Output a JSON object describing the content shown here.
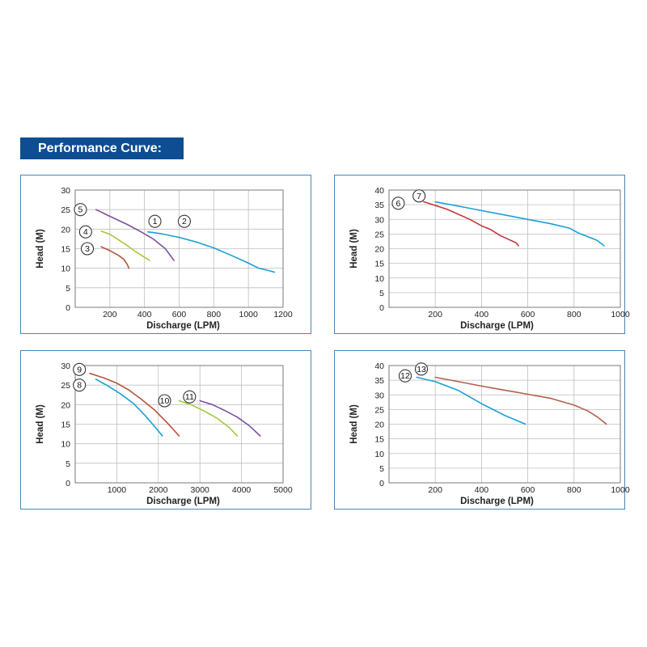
{
  "page": {
    "title": "Performance Curve:"
  },
  "colors": {
    "banner": "#0d4d92",
    "border": "#4a86b8",
    "blue": "#1a9fd6",
    "purple": "#7b52a4",
    "green": "#a8c83c",
    "brown": "#b5533e",
    "red": "#c7353a",
    "brown2": "#b3604b"
  },
  "chart_data": [
    {
      "type": "line",
      "xlabel": "Discharge (LPM)",
      "ylabel": "Head (M)",
      "xlim": [
        0,
        1200
      ],
      "ylim": [
        0,
        30
      ],
      "xticks": [
        200,
        400,
        600,
        800,
        1000,
        1200
      ],
      "yticks": [
        0,
        5,
        10,
        15,
        20,
        25,
        30
      ],
      "grid": true,
      "series": [
        {
          "name": "1",
          "color": "#7b52a4",
          "x": [
            120,
            200,
            300,
            380,
            450,
            520,
            570
          ],
          "y": [
            25,
            23.3,
            21.2,
            19.3,
            17.5,
            15,
            12
          ]
        },
        {
          "name": "2",
          "color": "#1a9fd6",
          "x": [
            420,
            500,
            600,
            700,
            800,
            900,
            1000,
            1060,
            1100,
            1150
          ],
          "y": [
            19.3,
            18.8,
            17.9,
            16.7,
            15.2,
            13.3,
            11.3,
            10,
            9.6,
            9
          ]
        },
        {
          "name": "3",
          "color": "#b5533e",
          "x": [
            150,
            200,
            250,
            280,
            300,
            310
          ],
          "y": [
            15.5,
            14.5,
            13.3,
            12.3,
            11,
            10
          ]
        },
        {
          "name": "4",
          "color": "#a8c83c",
          "x": [
            150,
            200,
            250,
            300,
            350,
            400,
            430
          ],
          "y": [
            19.5,
            18.7,
            17.3,
            15.8,
            14.2,
            12.8,
            12
          ]
        },
        {
          "name": "5",
          "color": "#7b52a4",
          "x": [],
          "y": []
        }
      ],
      "labels": [
        "1",
        "2",
        "3",
        "4",
        "5"
      ]
    },
    {
      "type": "line",
      "xlabel": "Discharge (LPM)",
      "ylabel": "Head (M)",
      "xlim": [
        0,
        1000
      ],
      "ylim": [
        0,
        40
      ],
      "xticks": [
        200,
        400,
        600,
        800,
        1000
      ],
      "yticks": [
        0,
        5,
        10,
        15,
        20,
        25,
        30,
        35,
        40
      ],
      "grid": true,
      "series": [
        {
          "name": "6",
          "color": "#c7353a",
          "x": [
            150,
            250,
            350,
            400,
            440,
            480,
            550,
            560
          ],
          "y": [
            36,
            33.5,
            30,
            27.8,
            26.5,
            24.5,
            22,
            21
          ]
        },
        {
          "name": "7",
          "color": "#1a9fd6",
          "x": [
            200,
            300,
            400,
            500,
            600,
            700,
            780,
            820,
            870,
            900,
            930
          ],
          "y": [
            36,
            34.5,
            33,
            31.5,
            30,
            28.5,
            27,
            25.3,
            23.8,
            22.8,
            21
          ]
        }
      ],
      "labels": [
        "6",
        "7"
      ]
    },
    {
      "type": "line",
      "xlabel": "Discharge (LPM)",
      "ylabel": "Head (M)",
      "xlim": [
        0,
        5000
      ],
      "ylim": [
        0,
        30
      ],
      "xticks": [
        1000,
        2000,
        3000,
        4000,
        5000
      ],
      "yticks": [
        0,
        5,
        10,
        15,
        20,
        25,
        30
      ],
      "grid": true,
      "series": [
        {
          "name": "8",
          "color": "#1a9fd6",
          "x": [
            500,
            800,
            1100,
            1400,
            1700,
            1900,
            2100
          ],
          "y": [
            26.5,
            24.7,
            22.7,
            20.3,
            17,
            14.5,
            12
          ]
        },
        {
          "name": "9",
          "color": "#b5533e",
          "x": [
            350,
            500,
            700,
            1000,
            1300,
            1600,
            1900,
            2200,
            2500
          ],
          "y": [
            28,
            27.5,
            26.8,
            25.5,
            23.7,
            21.3,
            18.7,
            15.5,
            12
          ]
        },
        {
          "name": "10",
          "color": "#a8c83c",
          "x": [
            2500,
            2800,
            3100,
            3400,
            3700,
            3900
          ],
          "y": [
            21,
            19.9,
            18.4,
            16.6,
            14.2,
            12
          ]
        },
        {
          "name": "11",
          "color": "#7b52a4",
          "x": [
            3000,
            3300,
            3600,
            3900,
            4200,
            4450
          ],
          "y": [
            21,
            20,
            18.5,
            16.8,
            14.5,
            12
          ]
        }
      ],
      "labels": [
        "8",
        "9",
        "10",
        "11"
      ]
    },
    {
      "type": "line",
      "xlabel": "Discharge (LPM)",
      "ylabel": "Head (M)",
      "xlim": [
        0,
        1000
      ],
      "ylim": [
        0,
        40
      ],
      "xticks": [
        200,
        400,
        600,
        800,
        1000
      ],
      "yticks": [
        0,
        5,
        10,
        15,
        20,
        25,
        30,
        35,
        40
      ],
      "grid": true,
      "series": [
        {
          "name": "12",
          "color": "#1a9fd6",
          "x": [
            120,
            200,
            300,
            400,
            500,
            590
          ],
          "y": [
            36,
            34.5,
            31.5,
            27,
            23,
            20
          ]
        },
        {
          "name": "13",
          "color": "#b3604b",
          "x": [
            200,
            300,
            400,
            500,
            600,
            700,
            800,
            860,
            900,
            940
          ],
          "y": [
            36,
            34.5,
            33,
            31.6,
            30.2,
            28.8,
            26.5,
            24.5,
            22.5,
            20
          ]
        }
      ],
      "labels": [
        "12",
        "13"
      ]
    }
  ]
}
